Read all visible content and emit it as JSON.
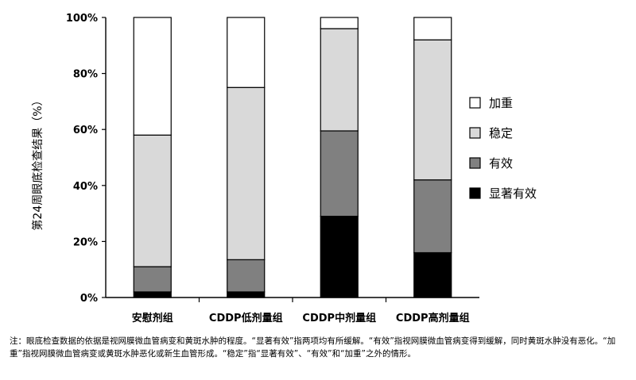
{
  "chart_data": {
    "type": "bar",
    "stacked": true,
    "ylabel": "第24周眼底检查结果（%）",
    "ylim": [
      0,
      100
    ],
    "yticks": [
      0,
      20,
      40,
      60,
      80,
      100
    ],
    "ytick_suffix": "%",
    "categories": [
      "安慰剂组",
      "CDDP低剂量组",
      "CDDP中剂量组",
      "CDDP高剂量组"
    ],
    "series": [
      {
        "name": "显著有效",
        "color": "#000000",
        "values": [
          2,
          2,
          29,
          16
        ]
      },
      {
        "name": "有效",
        "color": "#808080",
        "values": [
          9,
          11.5,
          30.5,
          26
        ]
      },
      {
        "name": "稳定",
        "color": "#d9d9d9",
        "values": [
          47,
          61.5,
          36.5,
          50
        ]
      },
      {
        "name": "加重",
        "color": "#ffffff",
        "values": [
          42,
          25,
          4,
          8
        ]
      }
    ],
    "legend_order": [
      "加重",
      "稳定",
      "有效",
      "显著有效"
    ],
    "legend_position": "right"
  },
  "note": "注：眼底检查数据的依据是视网膜微血管病变和黄斑水肿的程度。“显著有效”指两项均有所缓解。“有效”指视网膜微血管病变得到缓解，同时黄斑水肿没有恶化。“加重”指视网膜微血管病变或黄斑水肿恶化或新生血管形成。“稳定”指“显著有效”、“有效”和“加重”之外的情形。"
}
